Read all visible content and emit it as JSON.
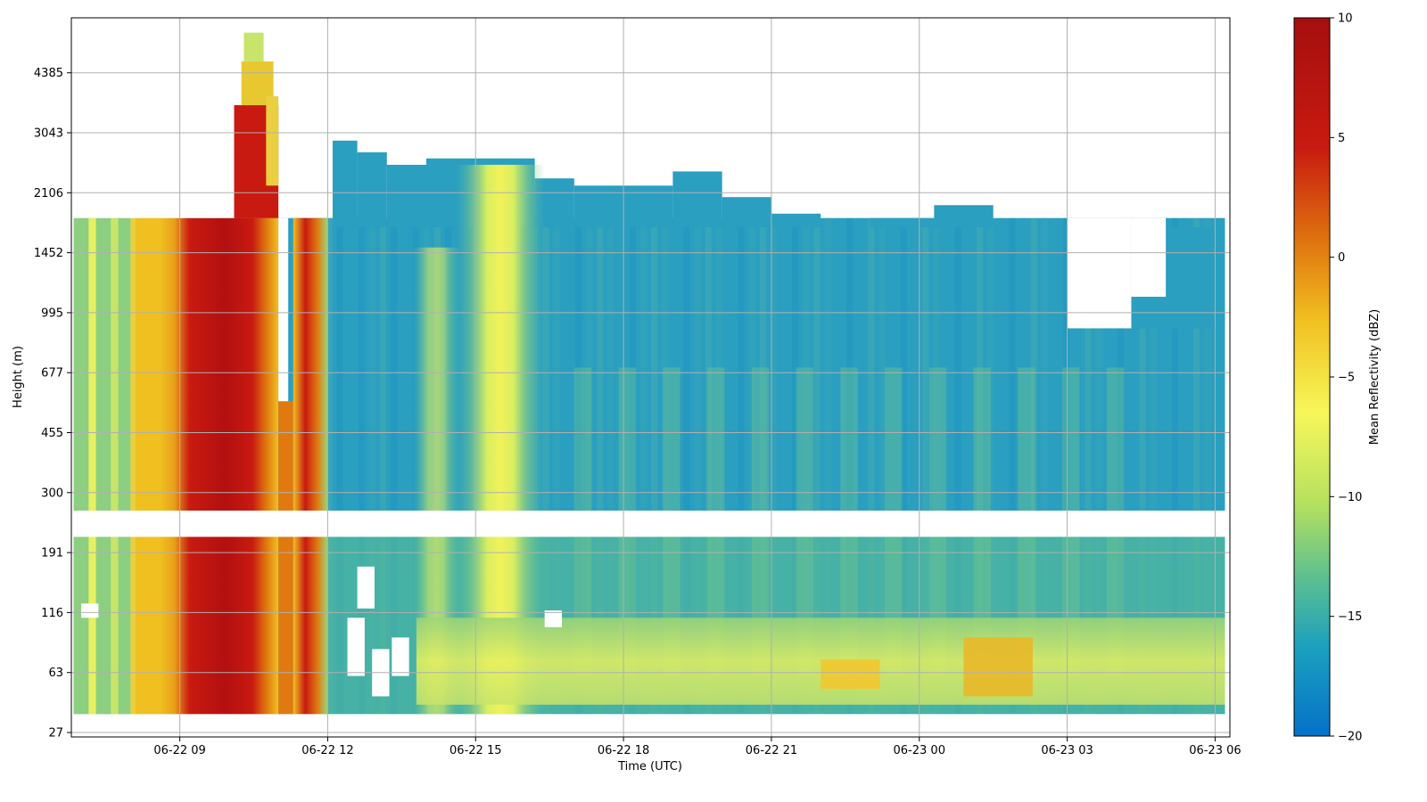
{
  "chart_data": {
    "type": "heatmap",
    "title": "",
    "xlabel": "Time (UTC)",
    "ylabel": "Height (m)",
    "x_ticks": [
      "06-22 09",
      "06-22 12",
      "06-22 15",
      "06-22 18",
      "06-22 21",
      "06-23 00",
      "06-23 03",
      "06-23 06"
    ],
    "x_tick_hours": [
      9,
      12,
      15,
      18,
      21,
      24,
      27,
      30
    ],
    "x_range_hours": [
      6.8,
      30.3
    ],
    "y_ticks": [
      "27",
      "63",
      "116",
      "191",
      "300",
      "455",
      "677",
      "995",
      "1452",
      "2106",
      "3043",
      "4385"
    ],
    "y_range": [
      27,
      6300
    ],
    "colorbar": {
      "label": "Mean Reflectivity (dBZ)",
      "ticks": [
        "10",
        "5",
        "0",
        "−5",
        "−10",
        "−15",
        "−20"
      ],
      "tick_values": [
        10,
        5,
        0,
        -5,
        -10,
        -15,
        -20
      ],
      "range": [
        -20,
        10
      ],
      "colormap": [
        "#0571c8",
        "#1a9fbf",
        "#5cbf90",
        "#b3e060",
        "#f7f75a",
        "#f0c020",
        "#e07a10",
        "#c81a10",
        "#a50f0f"
      ]
    },
    "grid": true,
    "gaps": [
      {
        "description": "white band between lower and upper range gates",
        "height_range": [
          215,
          260
        ]
      },
      {
        "description": "missing column near 06-22 11:10",
        "time_range_hours": [
          11.0,
          11.25
        ]
      }
    ],
    "features": [
      {
        "name": "strong precipitation",
        "time_range_hours": [
          8.6,
          11.0
        ],
        "height_range": [
          35,
          1800
        ],
        "dbz": 9
      },
      {
        "name": "tall echo top",
        "time_range_hours": [
          10.1,
          11.0
        ],
        "height_range": [
          1800,
          5600
        ],
        "dbz": 6
      },
      {
        "name": "second rain band",
        "time_range_hours": [
          11.3,
          12.0
        ],
        "height_range": [
          35,
          1800
        ],
        "dbz": 5
      },
      {
        "name": "yellow plume",
        "time_range_hours": [
          15.0,
          16.2
        ],
        "height_range": [
          35,
          2500
        ],
        "dbz": -8
      },
      {
        "name": "near-surface enhancement",
        "time_range_hours": [
          14.0,
          30.2
        ],
        "height_range": [
          40,
          110
        ],
        "dbz": -8
      }
    ]
  }
}
